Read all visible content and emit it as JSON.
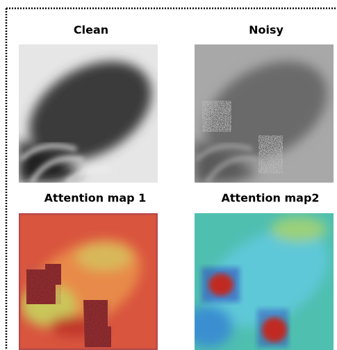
{
  "panels": [
    {
      "title": "Clean"
    },
    {
      "title": "Noisy"
    },
    {
      "title": "Attention map 1"
    },
    {
      "title": "Attention map2"
    }
  ]
}
